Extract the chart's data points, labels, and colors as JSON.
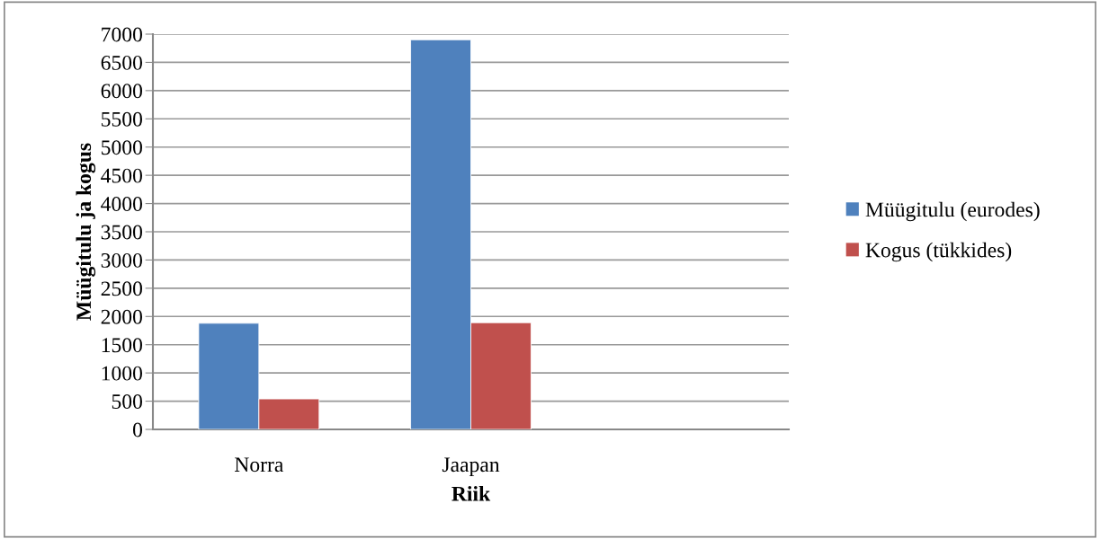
{
  "chart_data": {
    "type": "bar",
    "xlabel": "Riik",
    "ylabel": "Müügitulu ja kogus",
    "categories": [
      "Norra",
      "Jaapan",
      null
    ],
    "series": [
      {
        "name": "Müügitulu (eurodes)",
        "color": "#4f81bd",
        "values": [
          1880,
          6900,
          null
        ]
      },
      {
        "name": "Kogus (tükkides)",
        "color": "#c0504d",
        "values": [
          540,
          1890,
          null
        ]
      }
    ],
    "ylim": [
      0,
      7000
    ],
    "yticks": [
      0,
      500,
      1000,
      1500,
      2000,
      2500,
      3000,
      3500,
      4000,
      4500,
      5000,
      5500,
      6000,
      6500,
      7000
    ],
    "grid": "y",
    "legend": "right"
  }
}
